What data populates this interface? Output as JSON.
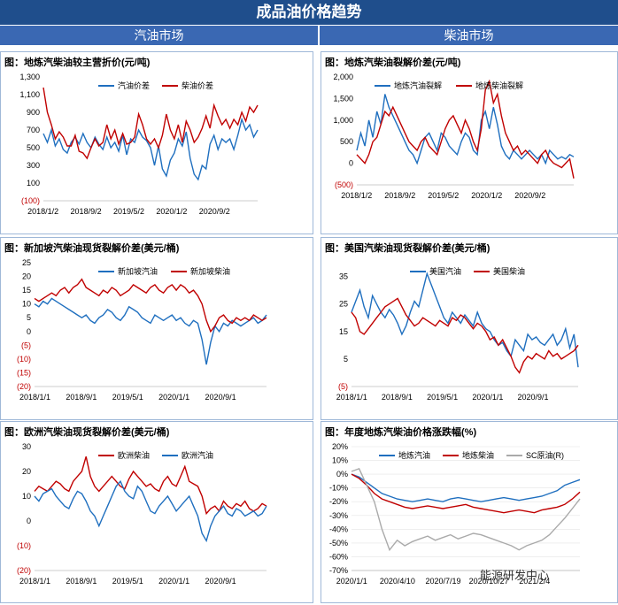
{
  "header": {
    "title": "成品油价格趋势",
    "left_col": "汽油市场",
    "right_col": "柴油市场"
  },
  "colors": {
    "blue": "#1f6fbf",
    "red": "#c00000",
    "gray": "#aaaaaa",
    "header": "#1f4e8c",
    "subheader": "#3a68b3"
  },
  "watermark": "能源研发中心",
  "chart_data": [
    {
      "type": "line",
      "title": "图：地炼汽柴油较主营折价(元/吨)",
      "xlabel": "",
      "ylabel": "",
      "x_ticks": [
        "2018/1/2",
        "2018/9/2",
        "2019/5/2",
        "2020/1/2",
        "2020/9/2"
      ],
      "y_ticks": [
        "1,300",
        "1,100",
        "900",
        "700",
        "500",
        "300",
        "100",
        "(100)"
      ],
      "y_tick_values": [
        1300,
        1100,
        900,
        700,
        500,
        300,
        100,
        -100
      ],
      "ylim": [
        -100,
        1300
      ],
      "series": [
        {
          "name": "汽油价差",
          "color": "#1f6fbf",
          "values": [
            660,
            560,
            700,
            520,
            600,
            480,
            440,
            560,
            620,
            540,
            660,
            560,
            500,
            620,
            540,
            480,
            620,
            500,
            560,
            460,
            640,
            420,
            600,
            560,
            700,
            620,
            580,
            500,
            300,
            520,
            260,
            180,
            360,
            440,
            600,
            520,
            680,
            380,
            200,
            140,
            300,
            260,
            540,
            640,
            480,
            600,
            560,
            600,
            480,
            640,
            820,
            700,
            760,
            620,
            700
          ]
        },
        {
          "name": "柴油价差",
          "color": "#c00000",
          "values": [
            1180,
            900,
            760,
            600,
            680,
            620,
            520,
            520,
            640,
            460,
            440,
            380,
            500,
            600,
            520,
            560,
            760,
            600,
            700,
            540,
            660,
            540,
            560,
            620,
            880,
            760,
            600,
            540,
            600,
            500,
            640,
            880,
            700,
            600,
            760,
            560,
            800,
            700,
            560,
            620,
            720,
            860,
            720,
            980,
            860,
            760,
            820,
            720,
            820,
            760,
            900,
            800,
            960,
            900,
            980
          ]
        }
      ]
    },
    {
      "type": "line",
      "title": "图：地炼汽柴油裂解价差(元/吨)",
      "xlabel": "",
      "ylabel": "",
      "x_ticks": [
        "2018/1/2",
        "2018/9/2",
        "2019/5/2",
        "2020/1/2",
        "2020/9/2"
      ],
      "y_ticks": [
        "2,000",
        "1,500",
        "1,000",
        "500",
        "0",
        "(500)"
      ],
      "y_tick_values": [
        2000,
        1500,
        1000,
        500,
        0,
        -500
      ],
      "ylim": [
        -500,
        2000
      ],
      "series": [
        {
          "name": "地炼汽油裂解",
          "color": "#1f6fbf",
          "values": [
            300,
            700,
            400,
            1000,
            600,
            1200,
            900,
            1600,
            1300,
            1100,
            900,
            700,
            500,
            300,
            200,
            0,
            300,
            600,
            700,
            500,
            300,
            700,
            600,
            400,
            300,
            200,
            500,
            700,
            600,
            300,
            200,
            1000,
            1200,
            800,
            1300,
            900,
            400,
            200,
            100,
            300,
            200,
            100,
            200,
            300,
            200,
            100,
            200,
            0,
            300,
            200,
            100,
            150,
            100,
            200,
            150
          ]
        },
        {
          "name": "地炼柴油裂解",
          "color": "#c00000",
          "values": [
            200,
            100,
            0,
            200,
            500,
            600,
            900,
            1200,
            1100,
            1300,
            1100,
            900,
            700,
            500,
            400,
            300,
            500,
            600,
            400,
            300,
            200,
            500,
            800,
            1000,
            1100,
            900,
            700,
            1000,
            800,
            500,
            300,
            800,
            1700,
            1900,
            1400,
            1600,
            1100,
            700,
            500,
            300,
            400,
            200,
            300,
            200,
            100,
            0,
            200,
            300,
            100,
            0,
            -50,
            -100,
            0,
            100,
            -350
          ]
        }
      ]
    },
    {
      "type": "line",
      "title": "图：新加坡汽柴油现货裂解价差(美元/桶)",
      "xlabel": "",
      "ylabel": "",
      "x_ticks": [
        "2018/1/1",
        "2018/9/1",
        "2019/5/1",
        "2020/1/1",
        "2020/9/1"
      ],
      "y_ticks": [
        "25",
        "20",
        "15",
        "10",
        "5",
        "0",
        "(5)",
        "(10)",
        "(15)",
        "(20)"
      ],
      "y_tick_values": [
        25,
        20,
        15,
        10,
        5,
        0,
        -5,
        -10,
        -15,
        -20
      ],
      "ylim": [
        -20,
        25
      ],
      "series": [
        {
          "name": "新加坡汽油",
          "color": "#1f6fbf",
          "values": [
            10,
            9,
            11,
            10,
            12,
            11,
            10,
            9,
            8,
            7,
            6,
            5,
            6,
            4,
            3,
            5,
            6,
            8,
            7,
            5,
            4,
            6,
            9,
            8,
            7,
            5,
            4,
            3,
            6,
            5,
            4,
            5,
            6,
            4,
            5,
            3,
            2,
            4,
            3,
            -3,
            -12,
            -4,
            2,
            0,
            3,
            2,
            4,
            3,
            2,
            3,
            4,
            5,
            3,
            4,
            6
          ]
        },
        {
          "name": "新加坡柴油",
          "color": "#c00000",
          "values": [
            12,
            11,
            12,
            13,
            14,
            13,
            15,
            16,
            14,
            16,
            17,
            19,
            16,
            15,
            14,
            13,
            15,
            14,
            16,
            15,
            13,
            14,
            15,
            17,
            16,
            15,
            14,
            16,
            17,
            15,
            14,
            16,
            17,
            15,
            17,
            16,
            14,
            15,
            13,
            10,
            4,
            0,
            2,
            5,
            6,
            4,
            3,
            5,
            4,
            5,
            4,
            6,
            5,
            4,
            5
          ]
        }
      ]
    },
    {
      "type": "line",
      "title": "图：美国汽柴油现货裂解价差(美元/桶)",
      "xlabel": "",
      "ylabel": "",
      "x_ticks": [
        "2018/1/1",
        "2018/9/1",
        "2019/5/1",
        "2020/1/1",
        "2020/9/1"
      ],
      "y_ticks": [
        "35",
        "25",
        "15",
        "5",
        "(5)"
      ],
      "y_tick_values": [
        35,
        25,
        15,
        5,
        -5
      ],
      "ylim": [
        -5,
        40
      ],
      "series": [
        {
          "name": "美国汽油",
          "color": "#1f6fbf",
          "values": [
            22,
            26,
            30,
            24,
            20,
            28,
            25,
            22,
            20,
            23,
            21,
            18,
            14,
            17,
            22,
            26,
            24,
            30,
            36,
            32,
            28,
            24,
            20,
            18,
            22,
            20,
            18,
            21,
            19,
            17,
            22,
            18,
            16,
            15,
            12,
            10,
            11,
            8,
            6,
            12,
            10,
            8,
            14,
            12,
            13,
            11,
            10,
            12,
            14,
            10,
            12,
            16,
            9,
            14,
            2
          ]
        },
        {
          "name": "美国柴油",
          "color": "#c00000",
          "values": [
            22,
            20,
            15,
            14,
            16,
            18,
            20,
            22,
            24,
            25,
            26,
            27,
            24,
            21,
            19,
            17,
            18,
            20,
            19,
            18,
            17,
            19,
            18,
            17,
            20,
            19,
            21,
            20,
            18,
            16,
            18,
            17,
            15,
            12,
            13,
            10,
            12,
            9,
            6,
            2,
            0,
            4,
            6,
            5,
            7,
            6,
            5,
            8,
            6,
            7,
            5,
            6,
            7,
            8,
            10
          ]
        }
      ]
    },
    {
      "type": "line",
      "title": "图：欧洲汽柴油现货裂解价差(美元/桶)",
      "xlabel": "",
      "ylabel": "",
      "x_ticks": [
        "2018/1/1",
        "2018/9/1",
        "2019/5/1",
        "2020/1/1",
        "2020/9/1"
      ],
      "y_ticks": [
        "30",
        "20",
        "10",
        "0",
        "(10)",
        "(20)"
      ],
      "y_tick_values": [
        30,
        20,
        10,
        0,
        -10,
        -20
      ],
      "ylim": [
        -20,
        30
      ],
      "series": [
        {
          "name": "欧洲柴油",
          "color": "#c00000",
          "values": [
            12,
            14,
            13,
            12,
            14,
            16,
            15,
            13,
            12,
            16,
            18,
            20,
            26,
            18,
            14,
            12,
            14,
            16,
            18,
            16,
            14,
            13,
            17,
            20,
            18,
            16,
            14,
            15,
            13,
            12,
            16,
            18,
            15,
            14,
            18,
            22,
            16,
            15,
            14,
            10,
            3,
            5,
            6,
            4,
            8,
            6,
            5,
            7,
            6,
            8,
            5,
            4,
            5,
            7,
            6
          ]
        },
        {
          "name": "欧洲汽油",
          "color": "#1f6fbf",
          "values": [
            10,
            8,
            11,
            12,
            13,
            10,
            8,
            6,
            5,
            9,
            12,
            11,
            8,
            4,
            2,
            -2,
            2,
            6,
            10,
            14,
            16,
            12,
            10,
            9,
            14,
            12,
            8,
            4,
            3,
            6,
            8,
            10,
            7,
            4,
            6,
            8,
            10,
            6,
            2,
            -5,
            -8,
            -2,
            2,
            4,
            6,
            3,
            2,
            5,
            4,
            2,
            3,
            4,
            2,
            3,
            6
          ]
        }
      ]
    },
    {
      "type": "line",
      "title": "图：年度地炼汽柴油价格涨跌幅(%)",
      "xlabel": "",
      "ylabel": "",
      "x_ticks": [
        "2020/1/1",
        "2020/4/10",
        "2020/7/19",
        "2020/10/27",
        "2021/2/4"
      ],
      "y_ticks": [
        "20%",
        "10%",
        "0%",
        "-10%",
        "-20%",
        "-30%",
        "-40%",
        "-50%",
        "-60%",
        "-70%"
      ],
      "y_tick_values": [
        20,
        10,
        0,
        -10,
        -20,
        -30,
        -40,
        -50,
        -60,
        -70
      ],
      "ylim": [
        -70,
        20
      ],
      "series": [
        {
          "name": "地炼汽油",
          "color": "#1f6fbf",
          "values": [
            0,
            -2,
            -6,
            -10,
            -14,
            -16,
            -18,
            -19,
            -20,
            -19,
            -18,
            -19,
            -20,
            -18,
            -17,
            -18,
            -19,
            -20,
            -19,
            -18,
            -17,
            -18,
            -19,
            -18,
            -17,
            -16,
            -14,
            -12,
            -8,
            -6,
            -4
          ]
        },
        {
          "name": "地炼柴油",
          "color": "#c00000",
          "values": [
            0,
            -3,
            -8,
            -14,
            -18,
            -20,
            -22,
            -24,
            -25,
            -24,
            -23,
            -24,
            -25,
            -24,
            -23,
            -22,
            -24,
            -25,
            -26,
            -27,
            -28,
            -27,
            -26,
            -27,
            -28,
            -26,
            -25,
            -24,
            -22,
            -18,
            -13
          ]
        },
        {
          "name": "SC原油(R)",
          "color": "#aaaaaa",
          "values": [
            2,
            4,
            -8,
            -20,
            -40,
            -55,
            -48,
            -52,
            -49,
            -47,
            -45,
            -48,
            -46,
            -44,
            -47,
            -45,
            -43,
            -44,
            -46,
            -48,
            -50,
            -52,
            -55,
            -52,
            -50,
            -48,
            -44,
            -38,
            -32,
            -25,
            -18
          ]
        }
      ]
    }
  ]
}
